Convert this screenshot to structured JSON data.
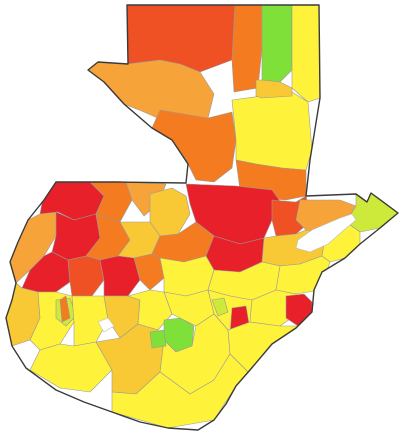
{
  "map": {
    "palette": {
      "red": "#e8202a",
      "red_orange": "#ef5124",
      "orange": "#f47b20",
      "light_orange": "#f6a43a",
      "gold": "#f8c935",
      "yellow": "#fff23a",
      "yellow_green": "#cde93a",
      "green": "#7fe03a",
      "no_data": "#ffffff"
    },
    "categories": [
      "red",
      "red_orange",
      "orange",
      "light_orange",
      "gold",
      "yellow",
      "yellow_green",
      "green",
      "no_data"
    ]
  }
}
